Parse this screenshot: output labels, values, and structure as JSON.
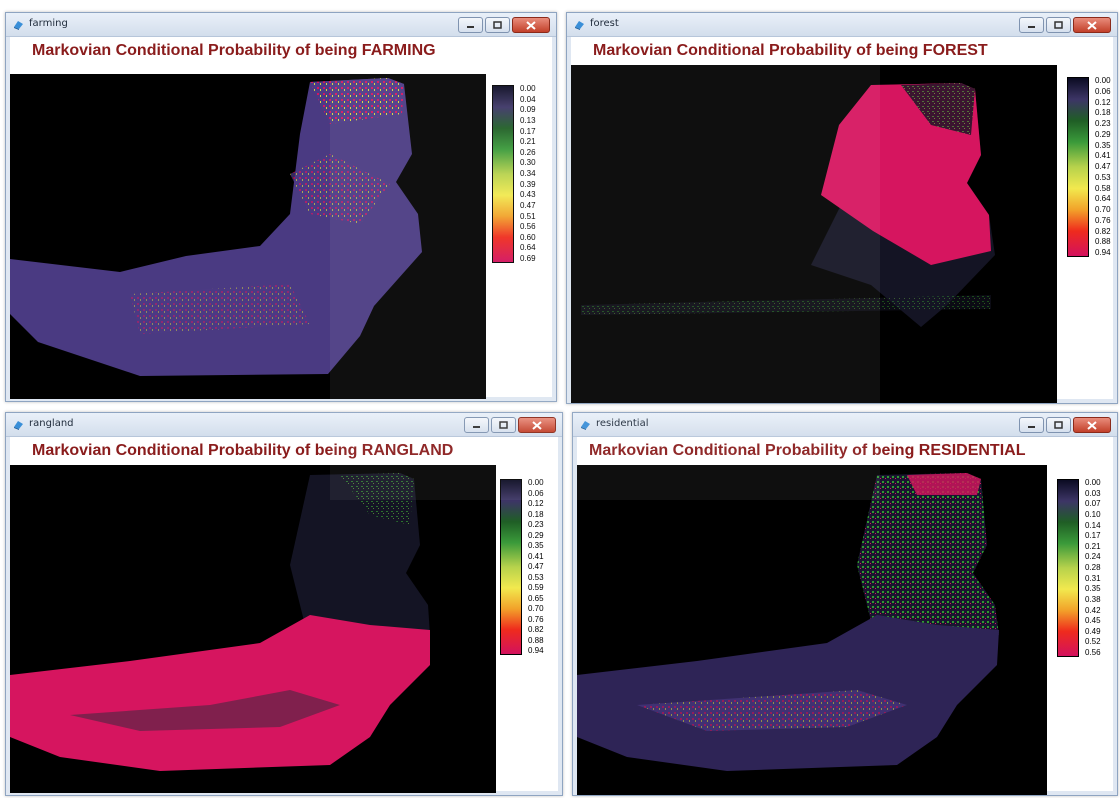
{
  "windows": {
    "farming": {
      "title": "farming",
      "heading": "Markovian Conditional Probability of being FARMING",
      "legend_ticks": [
        "0.00",
        "0.04",
        "0.09",
        "0.13",
        "0.17",
        "0.21",
        "0.26",
        "0.30",
        "0.34",
        "0.39",
        "0.43",
        "0.47",
        "0.51",
        "0.56",
        "0.60",
        "0.64",
        "0.69"
      ]
    },
    "forest": {
      "title": "forest",
      "heading": "Markovian Conditional Probability of being FOREST",
      "legend_ticks": [
        "0.00",
        "0.06",
        "0.12",
        "0.18",
        "0.23",
        "0.29",
        "0.35",
        "0.41",
        "0.47",
        "0.53",
        "0.58",
        "0.64",
        "0.70",
        "0.76",
        "0.82",
        "0.88",
        "0.94"
      ]
    },
    "rangland": {
      "title": "rangland",
      "heading": "Markovian Conditional Probability of being RANGLAND",
      "legend_ticks": [
        "0.00",
        "0.06",
        "0.12",
        "0.18",
        "0.23",
        "0.29",
        "0.35",
        "0.41",
        "0.47",
        "0.53",
        "0.59",
        "0.65",
        "0.70",
        "0.76",
        "0.82",
        "0.88",
        "0.94"
      ]
    },
    "residential": {
      "title": "residential",
      "heading": "Markovian Conditional Probability of being RESIDENTIAL",
      "legend_ticks": [
        "0.00",
        "0.03",
        "0.07",
        "0.10",
        "0.14",
        "0.17",
        "0.21",
        "0.24",
        "0.28",
        "0.31",
        "0.35",
        "0.38",
        "0.42",
        "0.45",
        "0.49",
        "0.52",
        "0.56"
      ]
    }
  },
  "colors": {
    "heading": "#8a1c1c",
    "low_purple": "#4a3a82",
    "pink": "#d6155f",
    "green": "#2f8a2f",
    "yellow": "#d8d83a",
    "dark": "#1c1a2e"
  },
  "icons": {
    "app": "idrisi-layer-icon",
    "minimize": "minimize-icon",
    "maximize": "maximize-icon",
    "close": "close-icon"
  }
}
